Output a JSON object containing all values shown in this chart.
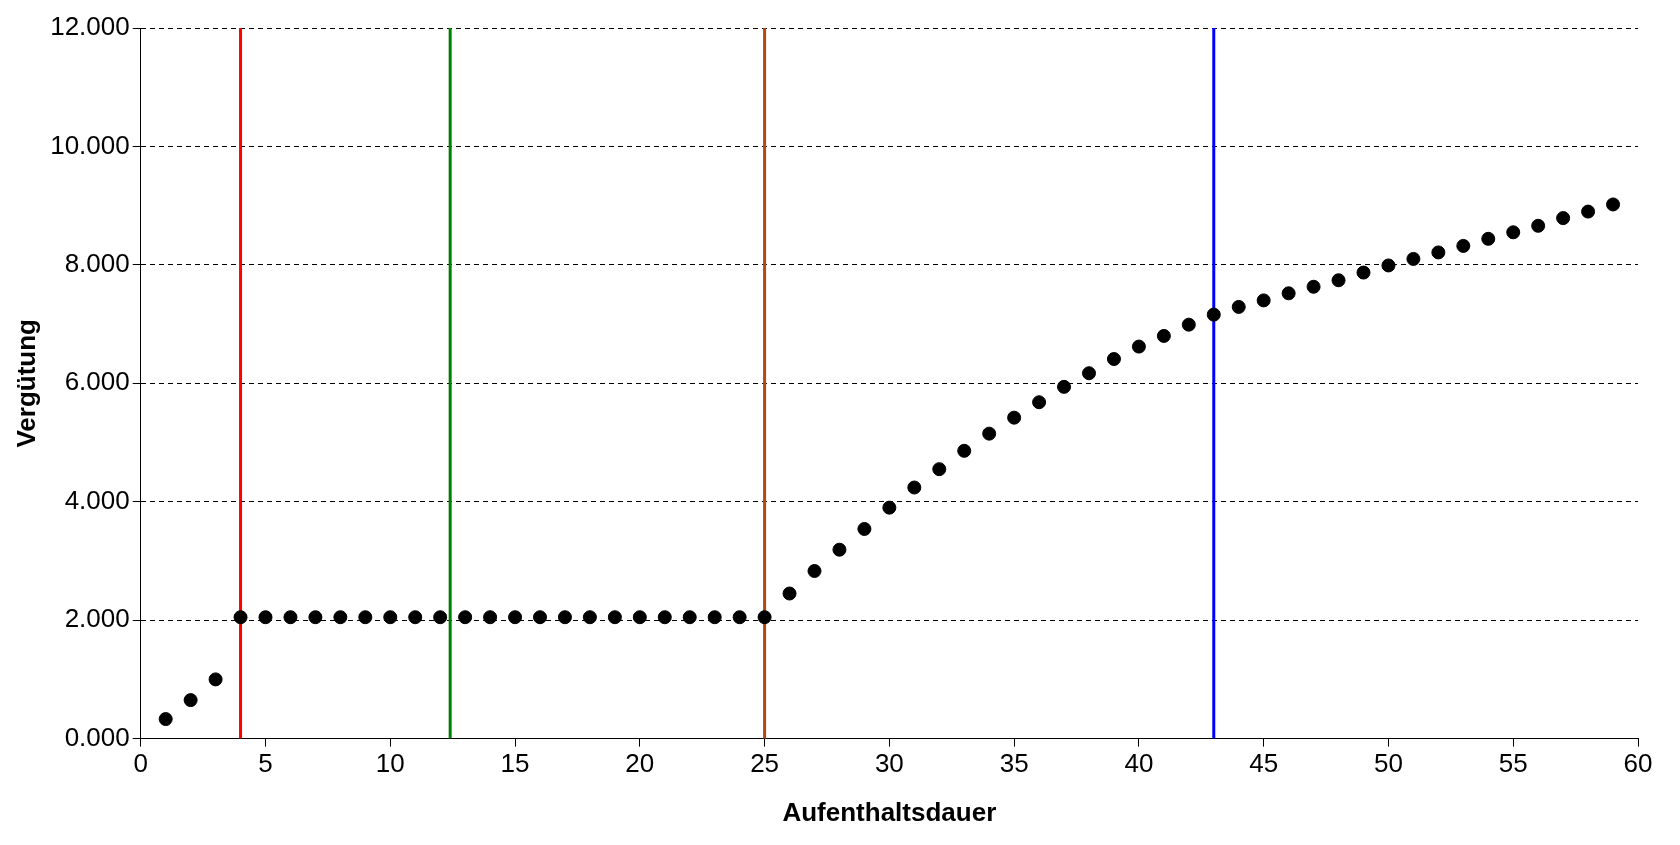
{
  "chart_data": {
    "type": "scatter",
    "xlabel": "Aufenthaltsdauer",
    "ylabel": "Vergütung",
    "x": [
      1,
      2,
      3,
      4,
      5,
      6,
      7,
      8,
      9,
      10,
      11,
      12,
      13,
      14,
      15,
      16,
      17,
      18,
      19,
      20,
      21,
      22,
      23,
      24,
      25,
      26,
      27,
      28,
      29,
      30,
      31,
      32,
      33,
      34,
      35,
      36,
      37,
      38,
      39,
      40,
      41,
      42,
      43,
      44,
      45,
      46,
      47,
      48,
      49,
      50,
      51,
      52,
      53,
      54,
      55,
      56,
      57,
      58,
      59
    ],
    "series": [
      {
        "color": "#000000",
        "values": [
          0.33,
          0.65,
          1.0,
          2.05,
          2.05,
          2.05,
          2.05,
          2.05,
          2.05,
          2.05,
          2.05,
          2.05,
          2.05,
          2.05,
          2.05,
          2.05,
          2.05,
          2.05,
          2.05,
          2.05,
          2.05,
          2.05,
          2.05,
          2.05,
          2.05,
          2.45,
          2.83,
          3.19,
          3.54,
          3.9,
          4.24,
          4.55,
          4.86,
          5.15,
          5.42,
          5.68,
          5.94,
          6.17,
          6.41,
          6.62,
          6.8,
          6.99,
          7.16,
          7.29,
          7.4,
          7.52,
          7.63,
          7.74,
          7.87,
          7.99,
          8.1,
          8.21,
          8.32,
          8.44,
          8.55,
          8.66,
          8.79,
          8.9,
          9.02
        ]
      }
    ],
    "xlim": [
      0,
      60
    ],
    "xticks": [
      0,
      5,
      10,
      15,
      20,
      25,
      30,
      35,
      40,
      45,
      50,
      55,
      60
    ],
    "ylim": [
      0,
      12
    ],
    "yticks": [
      {
        "value": 0,
        "label": "0.000"
      },
      {
        "value": 2,
        "label": "2.000"
      },
      {
        "value": 4,
        "label": "4.000"
      },
      {
        "value": 6,
        "label": "6.000"
      },
      {
        "value": 8,
        "label": "8.000"
      },
      {
        "value": 10,
        "label": "10.000"
      },
      {
        "value": 12,
        "label": "12.000"
      }
    ],
    "grid": "y",
    "marker": "circle",
    "ref_lines": [
      {
        "axis": "x",
        "value": 4,
        "color": "#ff0000"
      },
      {
        "axis": "x",
        "value": 12.4,
        "color": "#008000"
      },
      {
        "axis": "x",
        "value": 25,
        "color": "#b5480e"
      },
      {
        "axis": "x",
        "value": 43,
        "color": "#0000ff"
      }
    ]
  }
}
